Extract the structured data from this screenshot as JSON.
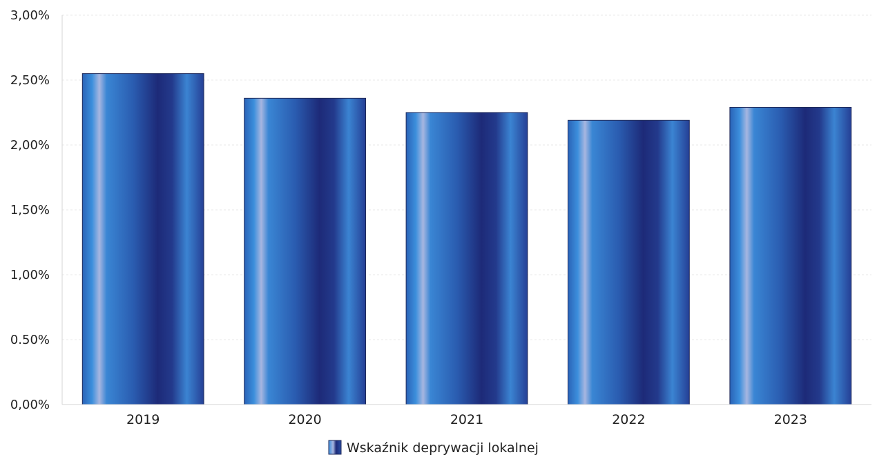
{
  "chart_data": {
    "type": "bar",
    "categories": [
      "2019",
      "2020",
      "2021",
      "2022",
      "2023"
    ],
    "series": [
      {
        "name": "Wskaźnik deprywacji lokalnej",
        "values": [
          2.55,
          2.36,
          2.25,
          2.19,
          2.29
        ]
      }
    ],
    "ylim": [
      0,
      3
    ],
    "yticks": [
      0,
      0.5,
      1,
      1.5,
      2,
      2.5,
      3
    ],
    "ytick_labels": [
      "0,00%",
      "0.50%",
      "1,00%",
      "1,50%",
      "2,00%",
      "2,50%",
      "3,00%"
    ],
    "grid": true,
    "legend_position": "bottom-center",
    "colors": {
      "bar_light": "#3c8fdc",
      "bar_mid": "#2b5fb0",
      "bar_dark": "#1d2a78",
      "bar_highlight": "#a7b6e0",
      "bar_outline": "#1f2a5a",
      "legend_swatch": "#2a4fa5"
    }
  }
}
